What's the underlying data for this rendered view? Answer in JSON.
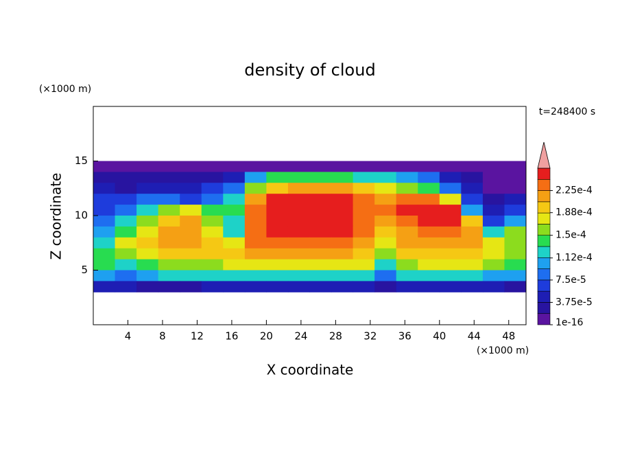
{
  "chart_data": {
    "type": "contour",
    "title": "density of cloud",
    "x_label": "X coordinate",
    "y_label": "Z coordinate",
    "x_unit": "(×1000 m)",
    "y_unit": "(×1000 m)",
    "time_label": "t=248400 s",
    "xlim": [
      0,
      50
    ],
    "ylim": [
      0,
      20
    ],
    "xticks": [
      4,
      8,
      12,
      16,
      20,
      24,
      28,
      32,
      36,
      40,
      44,
      48
    ],
    "yticks": [
      5,
      10,
      15
    ],
    "x": [
      1.25,
      3.75,
      6.25,
      8.75,
      11.25,
      13.75,
      16.25,
      18.75,
      21.25,
      23.75,
      26.25,
      28.75,
      31.25,
      33.75,
      36.25,
      38.75,
      41.25,
      43.75,
      46.25,
      48.75
    ],
    "y": [
      14.5,
      13.5,
      12.5,
      11.5,
      10.5,
      9.5,
      8.5,
      7.5,
      6.5,
      5.5,
      4.5,
      3.5
    ],
    "z": [
      [
        9e-06,
        9e-06,
        9e-06,
        9e-06,
        9e-06,
        9e-06,
        9e-06,
        9e-06,
        9e-06,
        9e-06,
        9e-06,
        9e-06,
        9e-06,
        9e-06,
        9e-06,
        9e-06,
        9e-06,
        9e-06,
        9e-06,
        9e-06
      ],
      [
        2.8e-05,
        2.8e-05,
        2.8e-05,
        2.8e-05,
        2.8e-05,
        2.8e-05,
        4.7e-05,
        0.000103,
        0.000141,
        0.000141,
        0.000141,
        0.000141,
        0.000122,
        0.000122,
        0.000103,
        8.4e-05,
        4.7e-05,
        2.8e-05,
        9e-06,
        9e-06
      ],
      [
        4.7e-05,
        2.8e-05,
        4.7e-05,
        4.7e-05,
        4.7e-05,
        6.6e-05,
        8.4e-05,
        0.000159,
        0.000197,
        0.000216,
        0.000216,
        0.000216,
        0.000197,
        0.000178,
        0.000159,
        0.000141,
        8.4e-05,
        4.7e-05,
        9e-06,
        9e-06
      ],
      [
        6.6e-05,
        6.6e-05,
        8.4e-05,
        8.4e-05,
        6.6e-05,
        8.4e-05,
        0.000122,
        0.000216,
        0.00025,
        0.00025,
        0.00025,
        0.00025,
        0.000234,
        0.000216,
        0.000234,
        0.000234,
        0.000178,
        6.6e-05,
        2.8e-05,
        4.7e-05
      ],
      [
        6.6e-05,
        8.4e-05,
        0.000122,
        0.000159,
        0.000178,
        0.000141,
        0.000141,
        0.000234,
        0.00025,
        0.00025,
        0.00025,
        0.00025,
        0.000234,
        0.000234,
        0.00025,
        0.00025,
        0.00025,
        0.000103,
        4.7e-05,
        6.6e-05
      ],
      [
        8.4e-05,
        0.000122,
        0.000159,
        0.000197,
        0.000216,
        0.000159,
        0.000122,
        0.000234,
        0.00025,
        0.00025,
        0.00025,
        0.00025,
        0.000234,
        0.000216,
        0.000234,
        0.00025,
        0.00025,
        0.000197,
        6.6e-05,
        0.000103
      ],
      [
        0.000103,
        0.000141,
        0.000178,
        0.000216,
        0.000216,
        0.000178,
        0.000122,
        0.000234,
        0.00025,
        0.00025,
        0.00025,
        0.00025,
        0.000234,
        0.000197,
        0.000216,
        0.000234,
        0.000234,
        0.000216,
        0.000122,
        0.000159
      ],
      [
        0.000122,
        0.000178,
        0.000197,
        0.000216,
        0.000216,
        0.000197,
        0.000178,
        0.000234,
        0.000234,
        0.000234,
        0.000234,
        0.000234,
        0.000216,
        0.000178,
        0.000216,
        0.000216,
        0.000216,
        0.000216,
        0.000178,
        0.000159
      ],
      [
        0.000141,
        0.000159,
        0.000178,
        0.000197,
        0.000197,
        0.000197,
        0.000197,
        0.000216,
        0.000216,
        0.000216,
        0.000216,
        0.000216,
        0.000197,
        0.000159,
        0.000197,
        0.000197,
        0.000197,
        0.000197,
        0.000178,
        0.000159
      ],
      [
        0.000141,
        0.000122,
        0.000141,
        0.000159,
        0.000159,
        0.000159,
        0.000178,
        0.000178,
        0.000178,
        0.000178,
        0.000178,
        0.000178,
        0.000178,
        0.000122,
        0.000159,
        0.000178,
        0.000178,
        0.000178,
        0.000159,
        0.000141
      ],
      [
        0.000103,
        8.4e-05,
        0.000103,
        0.000122,
        0.000122,
        0.000122,
        0.000122,
        0.000122,
        0.000122,
        0.000122,
        0.000122,
        0.000122,
        0.000122,
        8.4e-05,
        0.000122,
        0.000122,
        0.000122,
        0.000122,
        0.000103,
        0.000103
      ],
      [
        4.7e-05,
        4.7e-05,
        2.8e-05,
        2.8e-05,
        2.8e-05,
        4.7e-05,
        4.7e-05,
        4.7e-05,
        4.7e-05,
        4.7e-05,
        4.7e-05,
        4.7e-05,
        4.7e-05,
        2.8e-05,
        4.7e-05,
        4.7e-05,
        4.7e-05,
        4.7e-05,
        4.7e-05,
        2.8e-05
      ]
    ],
    "colorbar": {
      "clim": [
        0,
        0.0002625
      ],
      "ticks": [
        1e-16,
        {
          "value": 3.75e-05,
          "label": "3.75e-5"
        },
        {
          "value": 7.5e-05,
          "label": "7.5e-5"
        },
        {
          "value": 0.000112,
          "label": "1.12e-4"
        },
        {
          "value": 0.00015,
          "label": "1.5e-4"
        },
        {
          "value": 0.000188,
          "label": "1.88e-4"
        },
        {
          "value": 0.000225,
          "label": "2.25e-4"
        }
      ],
      "colors": [
        "#5a14a0",
        "#2814a0",
        "#1e1eb4",
        "#1e3cdc",
        "#1e6ef0",
        "#1ea0f0",
        "#1ed2c8",
        "#28dc50",
        "#8cdc1e",
        "#e6e614",
        "#f5c814",
        "#f5a014",
        "#f56e14",
        "#e61e1e"
      ],
      "extend_color": "#f0a0a0"
    }
  }
}
